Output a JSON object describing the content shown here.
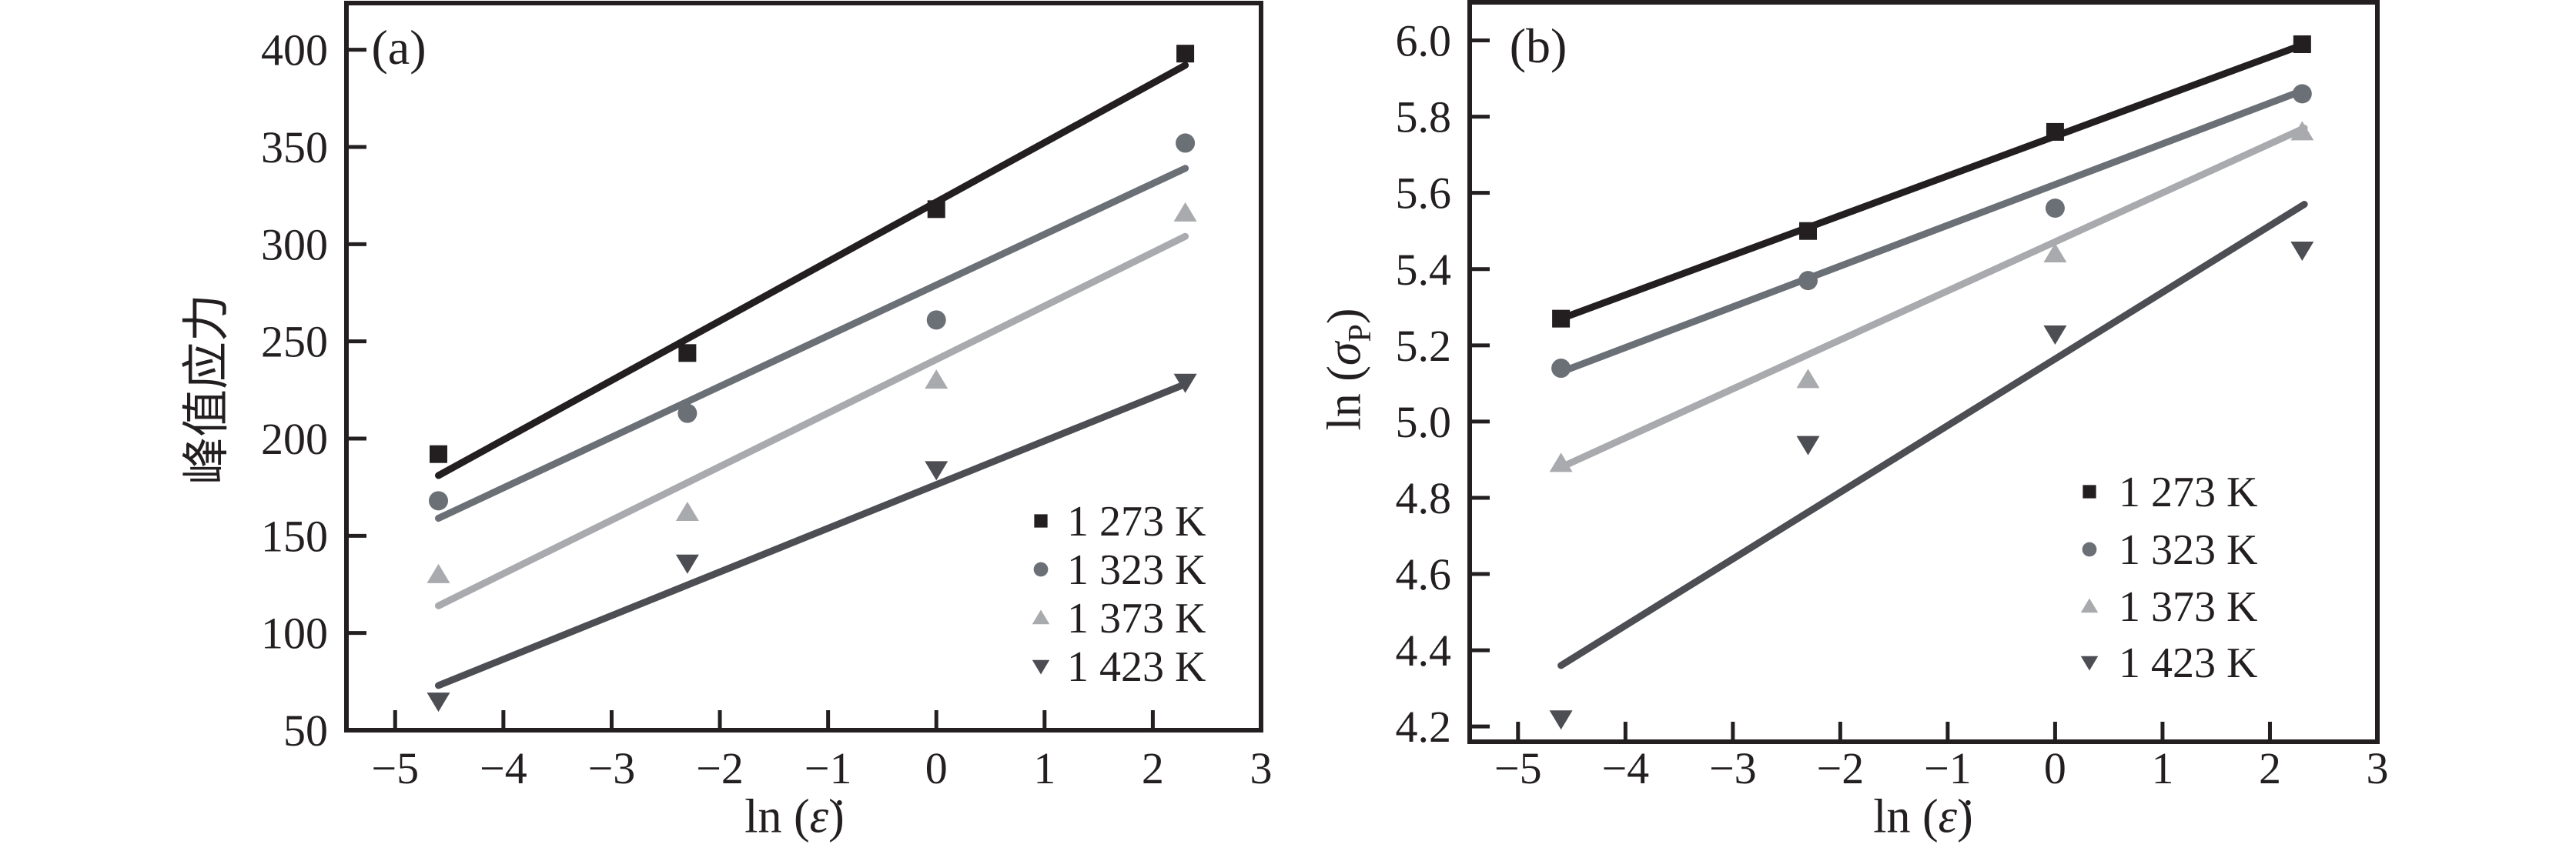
{
  "figure": {
    "background": "#ffffff",
    "text_color": "#231f20",
    "font_note": "serif scientific figure, two panels side by side"
  },
  "chart_data": [
    {
      "panel_label": "(a)",
      "type": "scatter",
      "title": "",
      "xlabel": {
        "prefix": "ln (",
        "variable": "ε̇",
        "suffix": ")"
      },
      "ylabel": "峰值应力",
      "xlim": [
        -5.45,
        3
      ],
      "ylim": [
        50,
        424
      ],
      "xtick_values": [
        -5,
        -4,
        -3,
        -2,
        -1,
        0,
        1,
        2,
        3
      ],
      "xtick_labels": [
        "−5",
        "−4",
        "−3",
        "−2",
        "−1",
        "0",
        "1",
        "2",
        "3"
      ],
      "ytick_values": [
        50,
        100,
        150,
        200,
        250,
        300,
        350,
        400
      ],
      "ytick_labels": [
        "50",
        "100",
        "150",
        "200",
        "250",
        "300",
        "350",
        "400"
      ],
      "grid": false,
      "legend_position": "inside-lower-right",
      "series": [
        {
          "name": "1 273 K",
          "marker": "square",
          "color": "#231f20",
          "x": [
            -4.6,
            -2.3,
            0,
            2.3
          ],
          "y": [
            192,
            244,
            318,
            398
          ],
          "fit_line": {
            "x": [
              -4.6,
              2.3
            ],
            "y": [
              181,
              392
            ]
          }
        },
        {
          "name": "1 323 K",
          "marker": "circle",
          "color": "#6b7077",
          "x": [
            -4.6,
            -2.3,
            0,
            2.3
          ],
          "y": [
            168,
            213,
            261,
            352
          ],
          "fit_line": {
            "x": [
              -4.6,
              2.3
            ],
            "y": [
              159,
              339
            ]
          }
        },
        {
          "name": "1 373 K",
          "marker": "triangle-up",
          "color": "#a8aaad",
          "x": [
            -4.6,
            -2.3,
            0,
            2.3
          ],
          "y": [
            130,
            162,
            230,
            316
          ],
          "fit_line": {
            "x": [
              -4.6,
              2.3
            ],
            "y": [
              114,
              304
            ]
          }
        },
        {
          "name": "1 423 K",
          "marker": "triangle-down",
          "color": "#4d4e54",
          "x": [
            -4.6,
            -2.3,
            0,
            2.3
          ],
          "y": [
            65,
            136,
            184,
            229
          ],
          "fit_line": {
            "x": [
              -4.6,
              2.3
            ],
            "y": [
              73,
              228
            ]
          }
        }
      ]
    },
    {
      "panel_label": "(b)",
      "type": "scatter",
      "title": "",
      "xlabel": {
        "prefix": "ln (",
        "variable": "ε̇",
        "suffix": ")"
      },
      "ylabel": {
        "prefix": "ln (",
        "variable": "σ",
        "sub": "P",
        "suffix": ")"
      },
      "xlim": [
        -5.45,
        3
      ],
      "ylim": [
        4.16,
        6.1
      ],
      "xtick_values": [
        -5,
        -4,
        -3,
        -2,
        -1,
        0,
        1,
        2,
        3
      ],
      "xtick_labels": [
        "−5",
        "−4",
        "−3",
        "−2",
        "−1",
        "0",
        "1",
        "2",
        "3"
      ],
      "ytick_values": [
        4.2,
        4.4,
        4.6,
        4.8,
        5.0,
        5.2,
        5.4,
        5.6,
        5.8,
        6.0
      ],
      "ytick_labels": [
        "4.2",
        "4.4",
        "4.6",
        "4.8",
        "5.0",
        "5.2",
        "5.4",
        "5.6",
        "5.8",
        "6.0"
      ],
      "grid": false,
      "legend_position": "inside-lower-right",
      "series": [
        {
          "name": "1 273 K",
          "marker": "square",
          "color": "#231f20",
          "x": [
            -4.6,
            -2.3,
            0,
            2.3
          ],
          "y": [
            5.27,
            5.5,
            5.76,
            5.99
          ],
          "fit_line": {
            "x": [
              -4.6,
              2.32
            ],
            "y": [
              5.27,
              5.99
            ]
          }
        },
        {
          "name": "1 323 K",
          "marker": "circle",
          "color": "#6b7077",
          "x": [
            -4.6,
            -2.3,
            0,
            2.3
          ],
          "y": [
            5.14,
            5.37,
            5.56,
            5.86
          ],
          "fit_line": {
            "x": [
              -4.6,
              2.32
            ],
            "y": [
              5.13,
              5.87
            ]
          }
        },
        {
          "name": "1 373 K",
          "marker": "triangle-up",
          "color": "#a8aaad",
          "x": [
            -4.6,
            -2.3,
            0,
            2.3
          ],
          "y": [
            4.89,
            5.11,
            5.44,
            5.76
          ],
          "fit_line": {
            "x": [
              -4.6,
              2.32
            ],
            "y": [
              4.88,
              5.77
            ]
          }
        },
        {
          "name": "1 423 K",
          "marker": "triangle-down",
          "color": "#4d4e54",
          "x": [
            -4.6,
            -2.3,
            0,
            2.3
          ],
          "y": [
            4.22,
            4.94,
            5.23,
            5.45
          ],
          "fit_line": {
            "x": [
              -4.6,
              2.32
            ],
            "y": [
              4.36,
              5.57
            ]
          }
        }
      ]
    }
  ]
}
